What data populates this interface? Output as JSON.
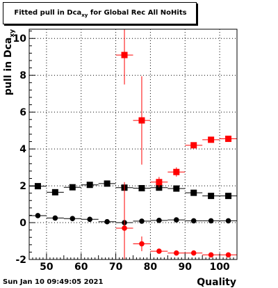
{
  "chart_data": {
    "type": "scatter",
    "title": "Fitted pull in Dca",
    "title_subscript": "xy",
    "title_suffix": " for Global Rec All NoHits",
    "xlabel": "Quality",
    "ylabel": "pull in Dca",
    "ylabel_subscript": "xy",
    "xlim": [
      45,
      105
    ],
    "ylim": [
      -2,
      10.5
    ],
    "x_ticks": [
      50,
      60,
      70,
      80,
      90,
      100
    ],
    "y_ticks": [
      -2,
      0,
      2,
      4,
      6,
      8,
      10
    ],
    "grid": true,
    "series": [
      {
        "color": "#000000",
        "marker": "square",
        "x": [
          47.5,
          52.5,
          57.5,
          62.5,
          67.5,
          72.5,
          77.5,
          82.5,
          87.5,
          92.5,
          97.5,
          102.5
        ],
        "y": [
          1.98,
          1.65,
          1.92,
          2.05,
          2.12,
          1.9,
          1.87,
          1.9,
          1.85,
          1.62,
          1.45,
          1.45
        ],
        "yerr": [
          0.05,
          0.05,
          0.05,
          0.05,
          0.05,
          0.05,
          0.05,
          0.05,
          0.05,
          0.05,
          0.05,
          0.05
        ]
      },
      {
        "color": "#000000",
        "marker": "circle",
        "x": [
          47.5,
          52.5,
          57.5,
          62.5,
          67.5,
          72.5,
          77.5,
          82.5,
          87.5,
          92.5,
          97.5,
          102.5
        ],
        "y": [
          0.38,
          0.25,
          0.22,
          0.18,
          0.05,
          0.0,
          0.08,
          0.12,
          0.15,
          0.1,
          0.1,
          0.1
        ],
        "yerr": [
          0.05,
          0.05,
          0.05,
          0.05,
          0.05,
          0.05,
          0.05,
          0.05,
          0.05,
          0.05,
          0.05,
          0.05
        ]
      },
      {
        "color": "#ff0000",
        "marker": "square",
        "x": [
          72.5,
          77.5,
          82.5,
          87.5,
          92.5,
          97.5,
          102.5
        ],
        "y": [
          9.1,
          5.55,
          2.2,
          2.75,
          4.2,
          4.5,
          4.55
        ],
        "yerr": [
          1.6,
          2.4,
          0.28,
          0.25,
          0.12,
          0.08,
          0.08
        ]
      },
      {
        "color": "#ff0000",
        "marker": "circle",
        "x": [
          72.5,
          77.5,
          82.5,
          87.5,
          92.5,
          97.5,
          102.5
        ],
        "y": [
          -0.3,
          -1.15,
          -1.55,
          -1.65,
          -1.65,
          -1.75,
          -1.75
        ],
        "yerr": [
          2.5,
          0.4,
          0.12,
          0.08,
          0.06,
          0.06,
          0.06
        ]
      }
    ]
  },
  "footer": {
    "timestamp": "Sun Jan 10 09:49:05 2021"
  }
}
